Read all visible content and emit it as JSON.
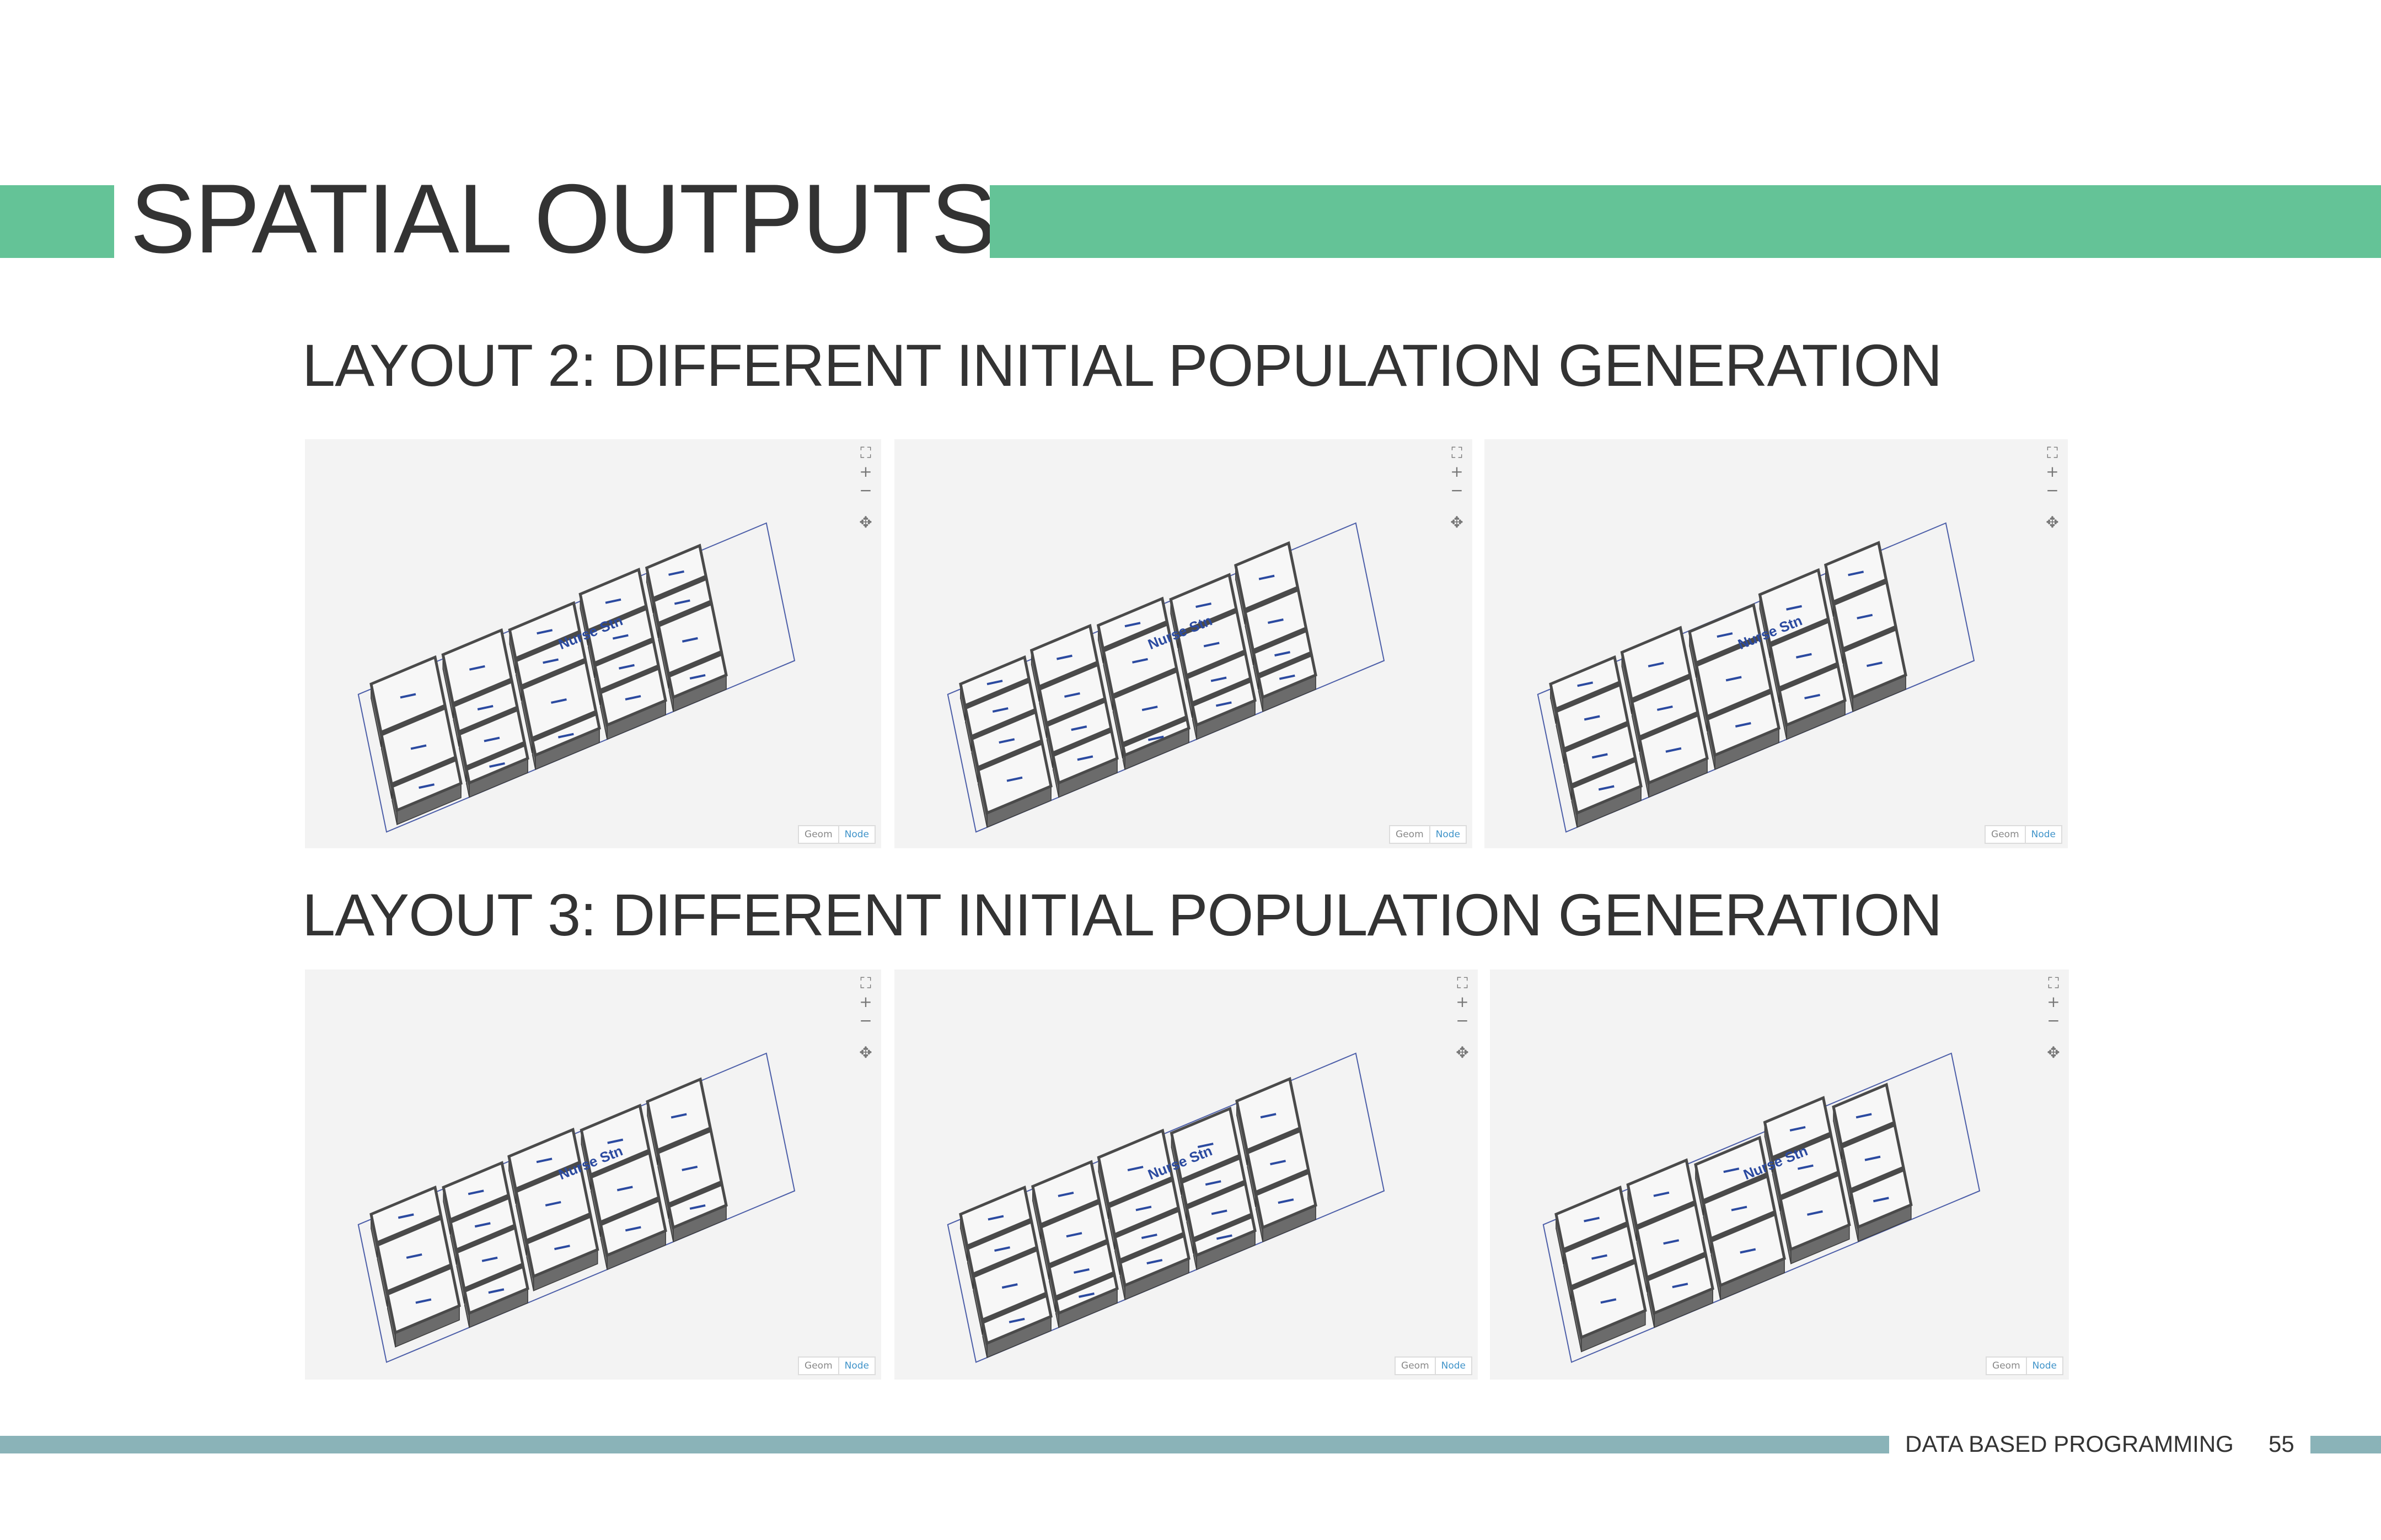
{
  "header": {
    "title": "SPATIAL OUTPUTS"
  },
  "layout2": {
    "heading": "LAYOUT 2: DIFFERENT INITIAL POPULATION GENERATION"
  },
  "layout3": {
    "heading": "LAYOUT 3: DIFFERENT INITIAL POPULATION GENERATION"
  },
  "viewer": {
    "geom_label": "Geom",
    "node_label": "Node",
    "nav_icons": [
      "fit-view-icon",
      "zoom-in-icon",
      "zoom-out-icon",
      "pan-icon"
    ],
    "room_label": "Nurse Stn"
  },
  "footer": {
    "text": "DATA BASED PROGRAMMING",
    "page_number": "55"
  },
  "colors": {
    "accent_green": "#64c397",
    "footer_teal": "#8ab3b8",
    "wall_gray": "#6b6b6b",
    "label_blue": "#2b4aa0"
  }
}
